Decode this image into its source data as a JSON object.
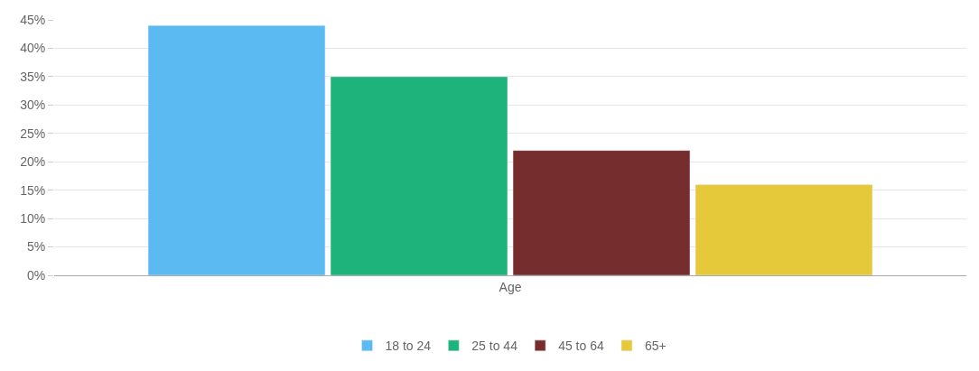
{
  "chart_data": {
    "type": "bar",
    "categories": [
      "Age"
    ],
    "series": [
      {
        "name": "18 to 24",
        "color": "#5bbaf1",
        "values": [
          44
        ]
      },
      {
        "name": "25 to 44",
        "color": "#1db37a",
        "values": [
          35
        ]
      },
      {
        "name": "45 to 64",
        "color": "#762d2d",
        "values": [
          22
        ]
      },
      {
        "name": "65+",
        "color": "#e6c93a",
        "values": [
          16
        ]
      }
    ],
    "ylim": [
      0,
      45
    ],
    "yticks": [
      {
        "value": 0,
        "label": "0%"
      },
      {
        "value": 5,
        "label": "5%"
      },
      {
        "value": 10,
        "label": "10%"
      },
      {
        "value": 15,
        "label": "15%"
      },
      {
        "value": 20,
        "label": "20%"
      },
      {
        "value": 25,
        "label": "25%"
      },
      {
        "value": 30,
        "label": "30%"
      },
      {
        "value": 35,
        "label": "35%"
      },
      {
        "value": 40,
        "label": "40%"
      },
      {
        "value": 45,
        "label": "45%"
      }
    ],
    "grid": "y",
    "legend": "bottom"
  }
}
